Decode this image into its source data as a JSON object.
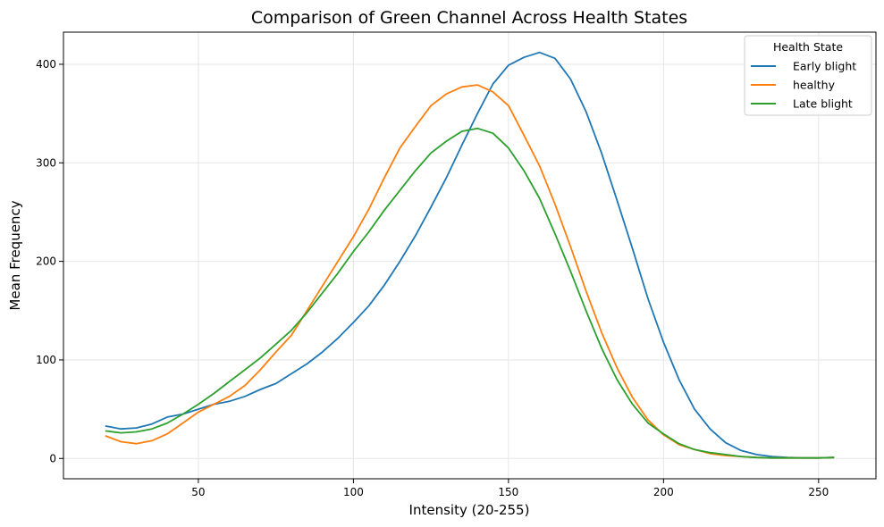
{
  "chart_data": {
    "type": "line",
    "title": "Comparison of Green Channel Across Health States",
    "xlabel": "Intensity (20-255)",
    "ylabel": "Mean Frequency",
    "xlim": [
      6.5,
      268.5
    ],
    "ylim": [
      -20.6,
      432.6
    ],
    "xticks": [
      50,
      100,
      150,
      200,
      250
    ],
    "yticks": [
      0,
      100,
      200,
      300,
      400
    ],
    "grid": true,
    "legend": {
      "title": "Health State",
      "placement": "top-right"
    },
    "series": [
      {
        "name": "Early blight",
        "color": "#1f77b4",
        "x": [
          20,
          25,
          30,
          35,
          40,
          45,
          50,
          55,
          60,
          65,
          70,
          75,
          80,
          85,
          90,
          95,
          100,
          105,
          110,
          115,
          120,
          125,
          130,
          135,
          140,
          145,
          150,
          155,
          160,
          165,
          170,
          175,
          180,
          185,
          190,
          195,
          200,
          205,
          210,
          215,
          220,
          225,
          230,
          235,
          240,
          245,
          250,
          255
        ],
        "y": [
          33,
          30,
          31,
          35,
          42,
          45,
          50,
          55,
          58,
          63,
          70,
          76,
          86,
          96,
          108,
          122,
          138,
          155,
          176,
          200,
          226,
          255,
          285,
          318,
          350,
          380,
          399,
          407,
          412,
          406,
          385,
          352,
          310,
          262,
          213,
          162,
          118,
          80,
          50,
          30,
          16,
          8,
          4,
          2,
          1,
          0.5,
          0.5,
          1
        ]
      },
      {
        "name": "healthy",
        "color": "#ff7f0e",
        "x": [
          20,
          25,
          30,
          35,
          40,
          45,
          50,
          55,
          60,
          65,
          70,
          75,
          80,
          85,
          90,
          95,
          100,
          105,
          110,
          115,
          120,
          125,
          130,
          135,
          140,
          145,
          150,
          155,
          160,
          165,
          170,
          175,
          180,
          185,
          190,
          195,
          200,
          205,
          210,
          215,
          220,
          225,
          230,
          235,
          240,
          245,
          250,
          255
        ],
        "y": [
          23,
          17,
          15,
          18,
          25,
          36,
          47,
          55,
          63,
          74,
          90,
          108,
          125,
          150,
          175,
          200,
          225,
          253,
          285,
          315,
          337,
          358,
          370,
          377,
          379,
          372,
          358,
          328,
          297,
          258,
          215,
          170,
          128,
          92,
          62,
          39,
          24,
          14,
          9,
          5,
          3,
          2,
          1,
          0.5,
          0.5,
          0.5,
          0.5,
          1
        ]
      },
      {
        "name": "Late blight",
        "color": "#2ca02c",
        "x": [
          20,
          25,
          30,
          35,
          40,
          45,
          50,
          55,
          60,
          65,
          70,
          75,
          80,
          85,
          90,
          95,
          100,
          105,
          110,
          115,
          120,
          125,
          130,
          135,
          140,
          145,
          150,
          155,
          160,
          165,
          170,
          175,
          180,
          185,
          190,
          195,
          200,
          205,
          210,
          215,
          220,
          225,
          230,
          235,
          240,
          245,
          250,
          255
        ],
        "y": [
          28,
          26,
          27,
          30,
          36,
          45,
          55,
          66,
          78,
          90,
          102,
          116,
          130,
          148,
          168,
          188,
          210,
          230,
          252,
          272,
          292,
          310,
          322,
          332,
          335,
          330,
          315,
          292,
          264,
          228,
          190,
          150,
          112,
          80,
          55,
          36,
          25,
          15,
          9,
          6,
          4,
          2,
          1,
          0.5,
          0.5,
          0.5,
          0.5,
          1
        ]
      }
    ]
  }
}
